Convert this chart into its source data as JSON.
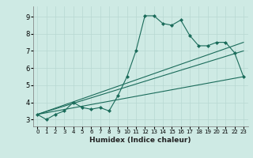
{
  "xlabel": "Humidex (Indice chaleur)",
  "xlim": [
    -0.5,
    23.5
  ],
  "ylim": [
    2.6,
    9.6
  ],
  "xticks": [
    0,
    1,
    2,
    3,
    4,
    5,
    6,
    7,
    8,
    9,
    10,
    11,
    12,
    13,
    14,
    15,
    16,
    17,
    18,
    19,
    20,
    21,
    22,
    23
  ],
  "yticks": [
    3,
    4,
    5,
    6,
    7,
    8,
    9
  ],
  "bg_color": "#ceeae4",
  "grid_color": "#b8d8d2",
  "line_color": "#1a6b5a",
  "main_line_x": [
    0,
    1,
    2,
    3,
    4,
    5,
    6,
    7,
    8,
    9,
    10,
    11,
    12,
    13,
    14,
    15,
    16,
    17,
    18,
    19,
    20,
    21,
    22,
    23
  ],
  "main_line_y": [
    3.3,
    3.0,
    3.3,
    3.5,
    4.0,
    3.7,
    3.6,
    3.7,
    3.5,
    4.4,
    5.5,
    7.0,
    9.05,
    9.05,
    8.6,
    8.5,
    8.8,
    7.9,
    7.3,
    7.3,
    7.5,
    7.5,
    6.9,
    5.5
  ],
  "line2_x": [
    0,
    23
  ],
  "line2_y": [
    3.3,
    7.5
  ],
  "line3_x": [
    0,
    23
  ],
  "line3_y": [
    3.3,
    5.5
  ],
  "line4_x": [
    0,
    23
  ],
  "line4_y": [
    3.3,
    7.0
  ]
}
